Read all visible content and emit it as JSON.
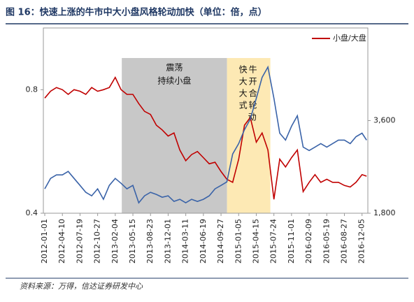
{
  "chart_data": {
    "type": "line",
    "title": "图 16：快速上涨的牛市中大小盘风格轮动加快（单位：倍，点）",
    "source": "资料来源：万得，信达证券研发中心",
    "x": [
      "2012-01-01",
      "2012-02-03",
      "2012-03-07",
      "2012-04-10",
      "2012-05-13",
      "2012-06-15",
      "2012-07-19",
      "2012-08-21",
      "2012-09-23",
      "2012-10-27",
      "2012-11-29",
      "2013-01-01",
      "2013-02-04",
      "2013-03-09",
      "2013-04-11",
      "2013-05-15",
      "2013-06-17",
      "2013-07-20",
      "2013-08-23",
      "2013-09-25",
      "2013-10-28",
      "2013-12-01",
      "2014-01-03",
      "2014-02-05",
      "2014-03-11",
      "2014-04-13",
      "2014-05-16",
      "2014-06-19",
      "2014-07-22",
      "2014-08-24",
      "2014-09-27",
      "2014-10-30",
      "2014-12-02",
      "2015-01-05",
      "2015-02-07",
      "2015-03-12",
      "2015-04-15",
      "2015-05-18",
      "2015-06-20",
      "2015-07-24",
      "2015-08-26",
      "2015-09-28",
      "2015-11-01",
      "2015-12-04",
      "2016-01-06",
      "2016-02-09",
      "2016-03-13",
      "2016-04-15",
      "2016-05-19",
      "2016-06-21",
      "2016-07-24",
      "2016-08-27",
      "2016-09-29",
      "2016-11-01",
      "2016-12-05",
      "2016-12-31"
    ],
    "series": [
      {
        "name": "小盘/大盘",
        "color": "#c00000",
        "values": [
          0.773,
          0.795,
          0.807,
          0.8,
          0.785,
          0.8,
          0.795,
          0.785,
          0.807,
          0.795,
          0.8,
          0.807,
          0.84,
          0.8,
          0.785,
          0.785,
          0.755,
          0.73,
          0.72,
          0.685,
          0.67,
          0.65,
          0.66,
          0.605,
          0.57,
          0.59,
          0.6,
          0.58,
          0.56,
          0.565,
          0.535,
          0.51,
          0.5,
          0.575,
          0.685,
          0.71,
          0.63,
          0.66,
          0.605,
          0.445,
          0.575,
          0.55,
          0.58,
          0.605,
          0.47,
          0.5,
          0.525,
          0.5,
          0.51,
          0.5,
          0.5,
          0.49,
          0.485,
          0.5,
          0.525,
          0.52
        ]
      },
      {
        "color": "#3a63a8",
        "axis": "y2",
        "values": [
          2274,
          2477,
          2544,
          2544,
          2612,
          2477,
          2341,
          2206,
          2138,
          2274,
          2071,
          2341,
          2477,
          2382,
          2274,
          2341,
          2003,
          2138,
          2206,
          2165,
          2111,
          2138,
          2030,
          2071,
          2003,
          2071,
          2030,
          2071,
          2138,
          2274,
          2341,
          2409,
          2950,
          3153,
          3424,
          3627,
          4033,
          4439,
          4641,
          4033,
          3356,
          3221,
          3491,
          3694,
          3085,
          3018,
          3085,
          3153,
          3085,
          3153,
          3221,
          3221,
          3153,
          3288,
          3356,
          3221
        ]
      }
    ],
    "regions": [
      {
        "start": "2013-03-13",
        "end": "2014-10-31",
        "color": "#c8c8c8",
        "label": [
          "震荡",
          "持续小盘"
        ]
      },
      {
        "start": "2014-10-31",
        "end": "2015-07-04",
        "color": "#fde9b4",
        "label": [
          "快牛",
          "大开",
          "大合",
          "式轮",
          "动"
        ]
      }
    ],
    "xlim": [
      "2011-12-24",
      "2017-01-07"
    ],
    "xticks": [
      "2012-01-01",
      "2012-04-10",
      "2012-07-19",
      "2012-10-27",
      "2013-02-04",
      "2013-05-15",
      "2013-08-23",
      "2013-12-01",
      "2014-03-11",
      "2014-06-19",
      "2014-09-27",
      "2015-01-05",
      "2015-04-15",
      "2015-07-24",
      "2015-11-01",
      "2016-02-09",
      "2016-05-19",
      "2016-08-27",
      "2016-12-05"
    ],
    "ylim": [
      0.4,
      1.0
    ],
    "yticks": [
      0.4,
      0.8
    ],
    "y2lim": [
      1800,
      5400
    ],
    "y2ticks": [
      {
        "value": 1800,
        "label": "1,800"
      },
      {
        "value": 3600,
        "label": "3,600"
      }
    ],
    "legend": "top-right"
  }
}
